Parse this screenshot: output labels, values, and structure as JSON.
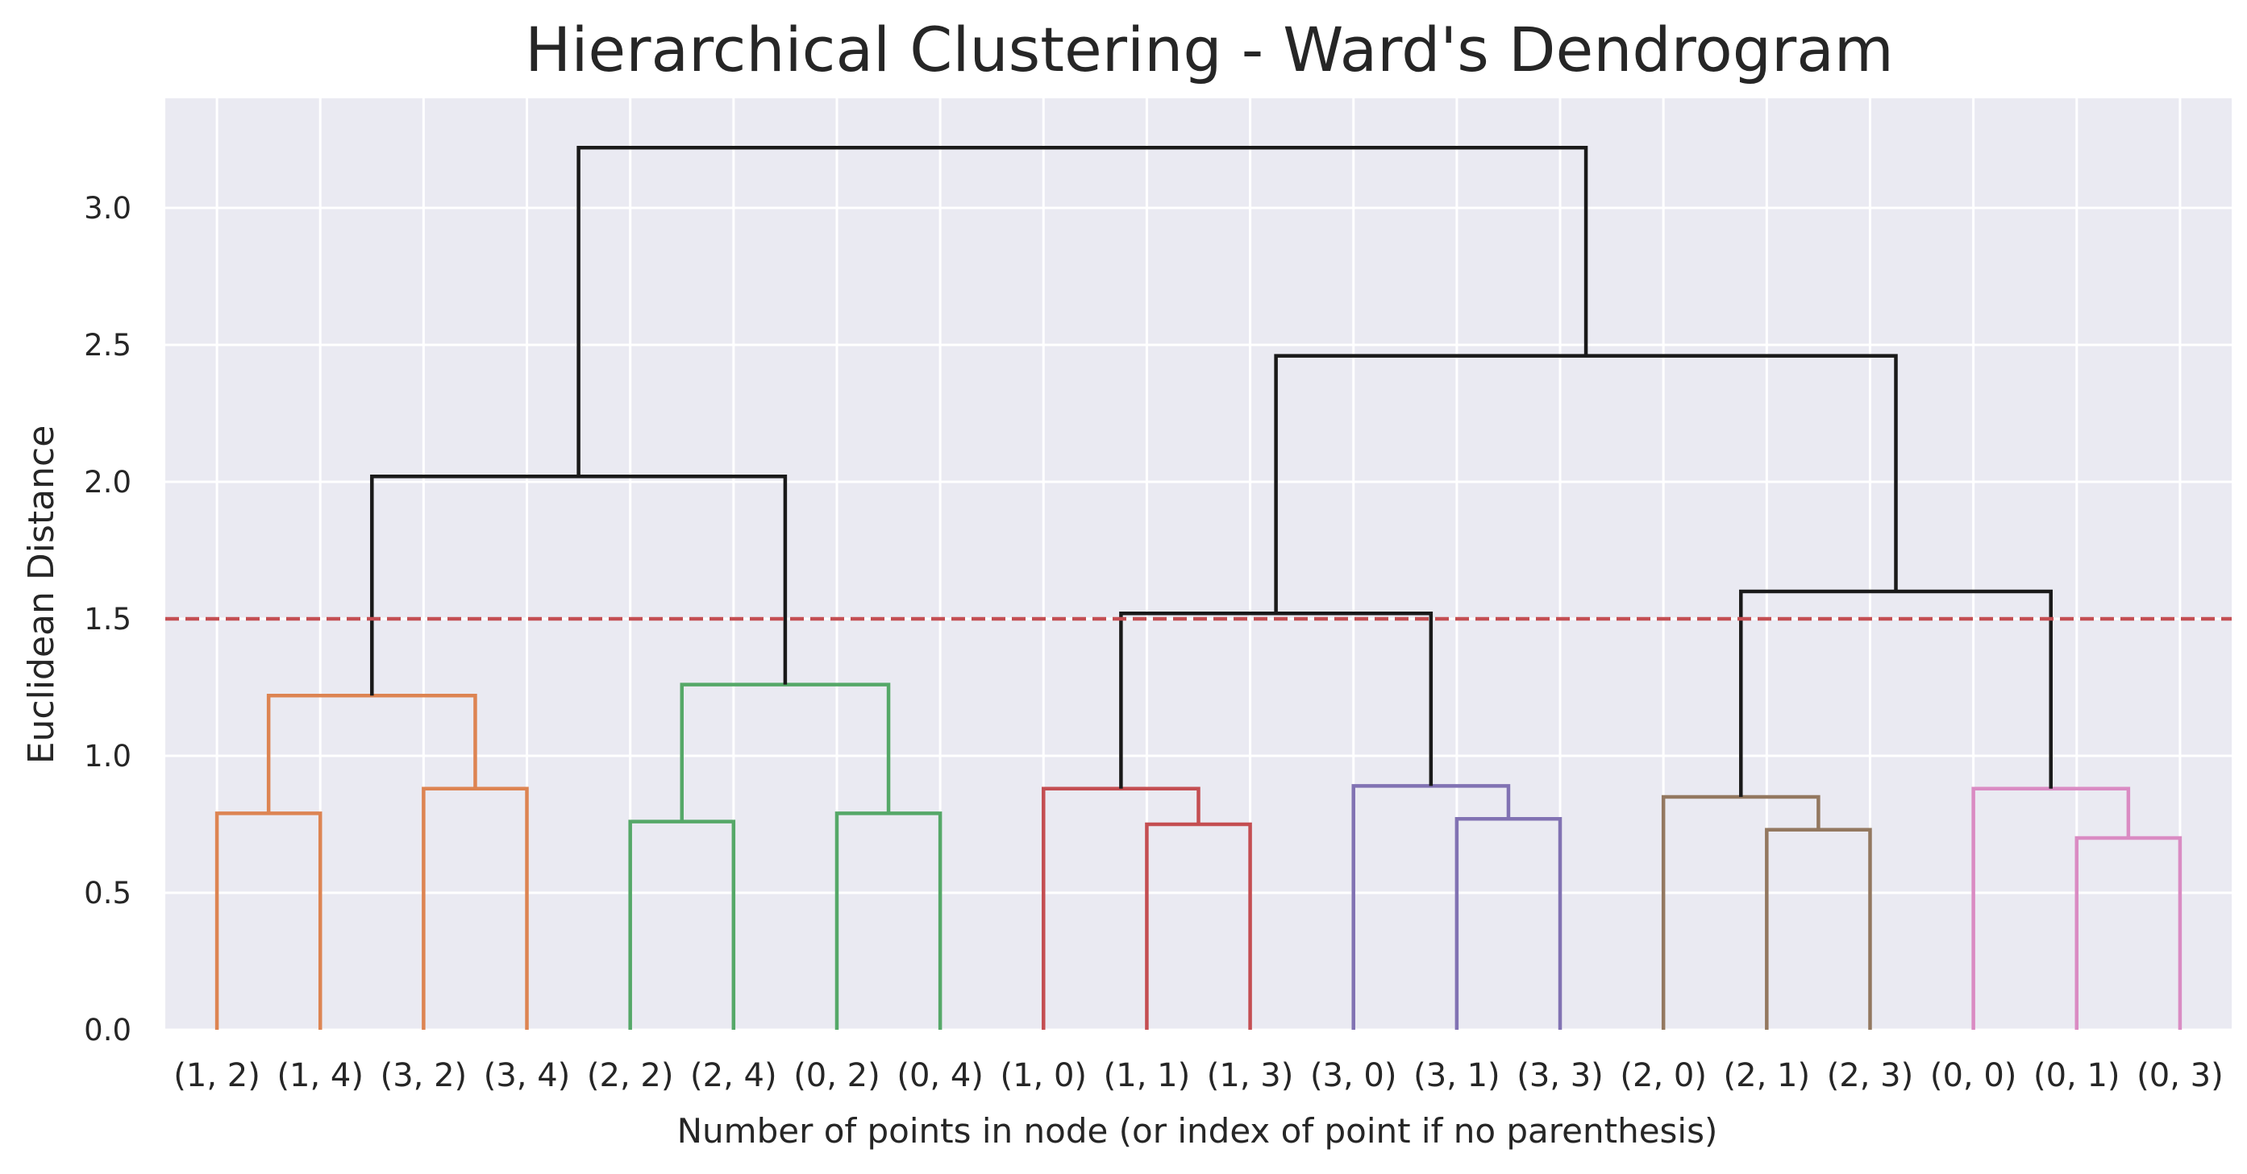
{
  "chart_data": {
    "type": "dendrogram",
    "title": "Hierarchical Clustering - Ward's Dendrogram",
    "xlabel": "Number of points in node (or index of point if no parenthesis)",
    "ylabel": "Euclidean Distance",
    "ylim": [
      0,
      3.4
    ],
    "yticks": [
      "0.0",
      "0.5",
      "1.0",
      "1.5",
      "2.0",
      "2.5",
      "3.0"
    ],
    "grid": true,
    "background": "#eaeaf2",
    "leaves": [
      "(1, 2)",
      "(1, 4)",
      "(3, 2)",
      "(3, 4)",
      "(2, 2)",
      "(2, 4)",
      "(0, 2)",
      "(0, 4)",
      "(1, 0)",
      "(1, 1)",
      "(1, 3)",
      "(3, 0)",
      "(3, 1)",
      "(3, 3)",
      "(2, 0)",
      "(2, 1)",
      "(2, 3)",
      "(0, 0)",
      "(0, 1)",
      "(0, 3)"
    ],
    "threshold": {
      "value": 1.5,
      "color": "#c44e52",
      "style": "dashed"
    },
    "links": [
      {
        "left": 0,
        "right": 1,
        "height": 0.79,
        "color": "#dd8452"
      },
      {
        "left": 2,
        "right": 3,
        "height": 0.88,
        "color": "#dd8452"
      },
      {
        "left": "n0",
        "right": "n1",
        "height": 1.22,
        "color": "#dd8452"
      },
      {
        "left": 4,
        "right": 5,
        "height": 0.76,
        "color": "#55a868"
      },
      {
        "left": 6,
        "right": 7,
        "height": 0.79,
        "color": "#55a868"
      },
      {
        "left": "n3",
        "right": "n4",
        "height": 1.26,
        "color": "#55a868"
      },
      {
        "left": "n2",
        "right": "n5",
        "height": 2.02,
        "color": "#1a1a1a"
      },
      {
        "left": 9,
        "right": 10,
        "height": 0.75,
        "color": "#c44e52"
      },
      {
        "left": 8,
        "right": "n7",
        "height": 0.88,
        "color": "#c44e52"
      },
      {
        "left": 12,
        "right": 13,
        "height": 0.77,
        "color": "#8172b3"
      },
      {
        "left": 11,
        "right": "n9",
        "height": 0.89,
        "color": "#8172b3"
      },
      {
        "left": "n8",
        "right": "n10",
        "height": 1.52,
        "color": "#1a1a1a"
      },
      {
        "left": 15,
        "right": 16,
        "height": 0.73,
        "color": "#937860"
      },
      {
        "left": 14,
        "right": "n12",
        "height": 0.85,
        "color": "#937860"
      },
      {
        "left": 18,
        "right": 19,
        "height": 0.7,
        "color": "#da8bc3"
      },
      {
        "left": 17,
        "right": "n14",
        "height": 0.88,
        "color": "#da8bc3"
      },
      {
        "left": "n13",
        "right": "n15",
        "height": 1.6,
        "color": "#1a1a1a"
      },
      {
        "left": "n11",
        "right": "n16",
        "height": 2.46,
        "color": "#1a1a1a"
      },
      {
        "left": "n6",
        "right": "n17",
        "height": 3.22,
        "color": "#1a1a1a"
      }
    ]
  }
}
